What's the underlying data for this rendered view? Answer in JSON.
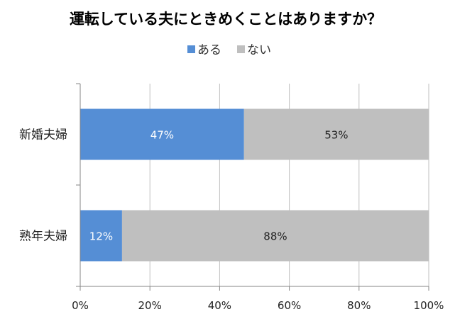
{
  "chart_data": {
    "type": "bar",
    "orientation": "horizontal",
    "stacked": true,
    "title": "運転している夫にときめくことはありますか？",
    "categories": [
      "新婚夫婦",
      "熟年夫婦"
    ],
    "series": [
      {
        "name": "ある",
        "values": [
          47,
          12
        ],
        "color": "#558ED5",
        "label_color": "#ffffff"
      },
      {
        "name": "ない",
        "values": [
          53,
          88
        ],
        "color": "#BFBFBF",
        "label_color": "#222222"
      }
    ],
    "data_labels": [
      [
        "47%",
        "12%"
      ],
      [
        "53%",
        "88%"
      ]
    ],
    "xlim": [
      0,
      100
    ],
    "x_ticks": [
      0,
      20,
      40,
      60,
      80,
      100
    ],
    "x_tick_labels": [
      "0%",
      "20%",
      "40%",
      "60%",
      "80%",
      "100%"
    ],
    "grid": true,
    "grid_color": "#BFBFBF",
    "legend_position": "top"
  }
}
